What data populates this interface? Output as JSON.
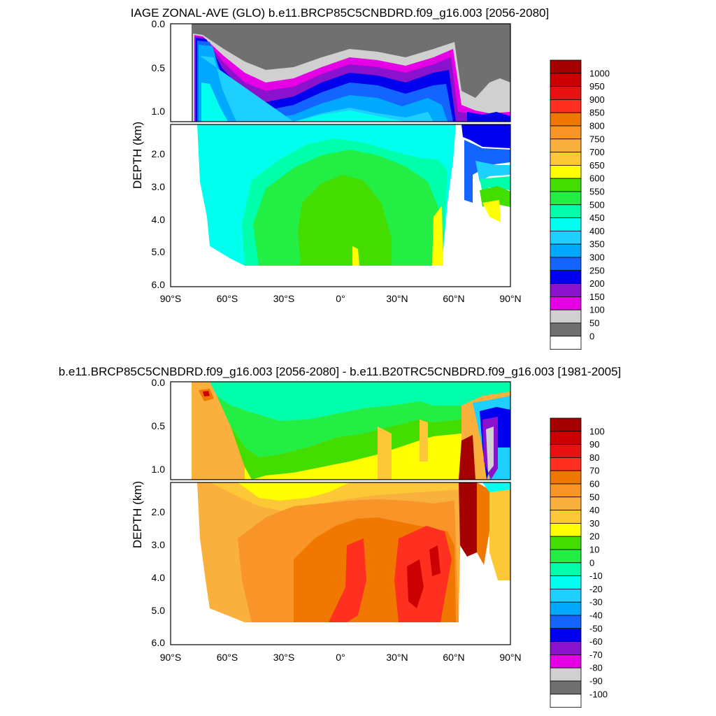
{
  "chart_data": [
    {
      "type": "heatmap",
      "title": "IAGE ZONAL-AVE (GLO) b.e11.BRCP85C5CNBDRD.f09_g16.003 [2056-2080]",
      "ylabel": "DEPTH (km)",
      "x_ticks": [
        "90°S",
        "60°S",
        "30°S",
        "0°",
        "30°N",
        "60°N",
        "90°N"
      ],
      "xlim": [
        -90,
        90
      ],
      "y_ticks_upper": [
        "0.0",
        "0.5",
        "1.0"
      ],
      "y_ticks_lower": [
        "2.0",
        "3.0",
        "4.0",
        "5.0",
        "6.0"
      ],
      "ylim": [
        0,
        6
      ],
      "colorbar_labels": [
        "1000",
        "950",
        "900",
        "850",
        "800",
        "750",
        "700",
        "650",
        "600",
        "550",
        "500",
        "450",
        "400",
        "350",
        "300",
        "250",
        "200",
        "150",
        "100",
        "50",
        "0"
      ],
      "colorbar_colors": [
        "#a50000",
        "#cc0000",
        "#e81010",
        "#ff3020",
        "#f07800",
        "#f89428",
        "#fab03c",
        "#fcc838",
        "#ffff00",
        "#44dd00",
        "#22ee44",
        "#00ffaa",
        "#00ffee",
        "#1ed0ff",
        "#00a8ff",
        "#1464ff",
        "#0000ee",
        "#8a12cc",
        "#e600e6",
        "#d0d0d0",
        "#707070",
        "#ffffff"
      ]
    },
    {
      "type": "heatmap",
      "title": "b.e11.BRCP85C5CNBDRD.f09_g16.003 [2056-2080] - b.e11.B20TRC5CNBDRD.f09_g16.003 [1981-2005]",
      "ylabel": "DEPTH (km)",
      "x_ticks": [
        "90°S",
        "60°S",
        "30°S",
        "0°",
        "30°N",
        "60°N",
        "90°N"
      ],
      "xlim": [
        -90,
        90
      ],
      "y_ticks_upper": [
        "0.0",
        "0.5",
        "1.0"
      ],
      "y_ticks_lower": [
        "2.0",
        "3.0",
        "4.0",
        "5.0",
        "6.0"
      ],
      "ylim": [
        0,
        6
      ],
      "colorbar_labels": [
        "100",
        "90",
        "80",
        "70",
        "60",
        "50",
        "40",
        "30",
        "20",
        "10",
        "0",
        "-10",
        "-20",
        "-30",
        "-40",
        "-50",
        "-60",
        "-70",
        "-80",
        "-90",
        "-100"
      ],
      "colorbar_colors": [
        "#a50000",
        "#cc0000",
        "#e81010",
        "#ff3020",
        "#f07800",
        "#f89428",
        "#fab03c",
        "#fcc838",
        "#ffff00",
        "#44dd00",
        "#22ee44",
        "#00ffaa",
        "#00ffee",
        "#1ed0ff",
        "#00a8ff",
        "#1464ff",
        "#0000ee",
        "#8a12cc",
        "#e600e6",
        "#d0d0d0",
        "#707070",
        "#ffffff"
      ]
    }
  ]
}
